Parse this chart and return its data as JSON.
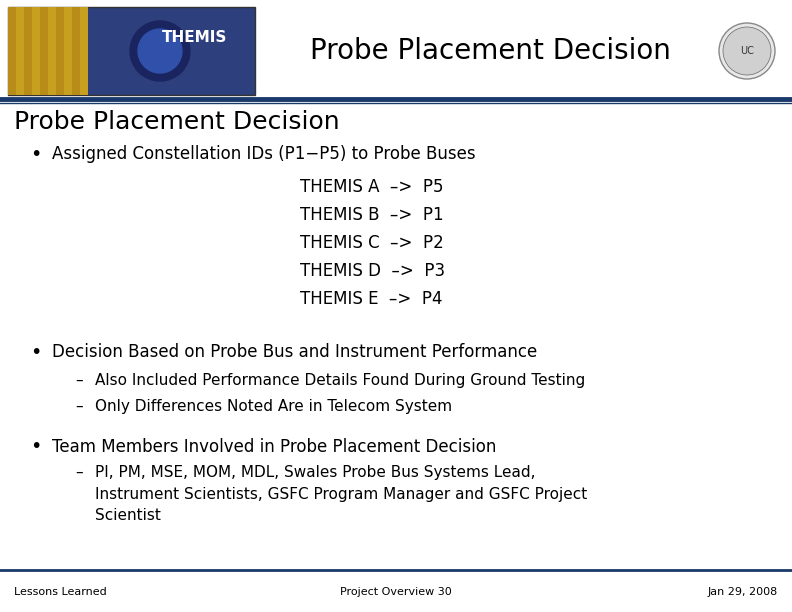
{
  "bg_color": "#ffffff",
  "header_line_color": "#1a3a6b",
  "header_title": "Probe Placement Decision",
  "header_title_fontsize": 20,
  "slide_title": "Probe Placement Decision",
  "slide_title_fontsize": 18,
  "body_fontsize": 12,
  "sub_fontsize": 11,
  "footer_fontsize": 8,
  "bullet1_text": "Assigned Constellation IDs (P1−P5) to Probe Buses",
  "mapping_lines": [
    "THEMIS A  –>  P5",
    "THEMIS B  –>  P1",
    "THEMIS C  –>  P2",
    "THEMIS D  –>  P3",
    "THEMIS E  –>  P4"
  ],
  "bullet2_text": "Decision Based on Probe Bus and Instrument Performance",
  "sub_bullets2": [
    "Also Included Performance Details Found During Ground Testing",
    "Only Differences Noted Are in Telecom System"
  ],
  "bullet3_text": "Team Members Involved in Probe Placement Decision",
  "sub_bullets3": [
    "PI, PM, MSE, MOM, MDL, Swales Probe Bus Systems Lead,",
    "Instrument Scientists, GSFC Program Manager and GSFC Project",
    "Scientist"
  ],
  "footer_left": "Lessons Learned",
  "footer_center": "Project Overview 30",
  "footer_right": "Jan 29, 2008"
}
